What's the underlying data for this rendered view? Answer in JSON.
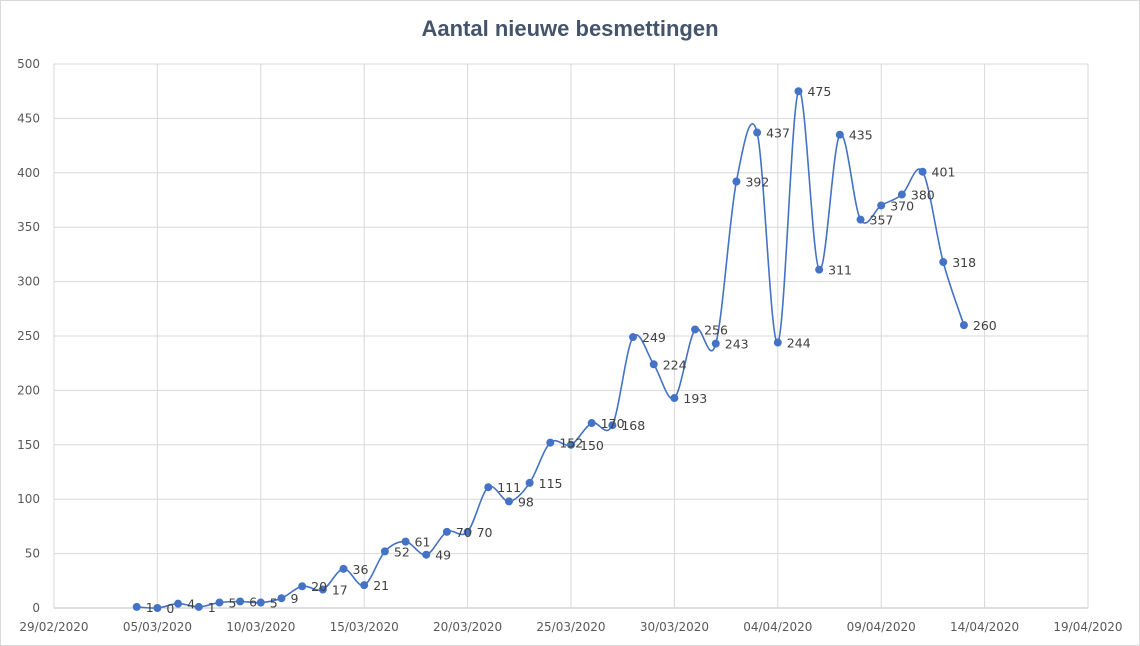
{
  "chart_data": {
    "type": "line",
    "title": "Aantal nieuwe besmettingen",
    "xlabel": "",
    "ylabel": "",
    "ylim": [
      0,
      500
    ],
    "yticks": [
      0,
      50,
      100,
      150,
      200,
      250,
      300,
      350,
      400,
      450,
      500
    ],
    "xlim": [
      "29/02/2020",
      "19/04/2020"
    ],
    "xticks": [
      "29/02/2020",
      "05/03/2020",
      "10/03/2020",
      "15/03/2020",
      "20/03/2020",
      "25/03/2020",
      "30/03/2020",
      "04/04/2020",
      "09/04/2020",
      "14/04/2020",
      "19/04/2020"
    ],
    "grid": true,
    "legend": "none",
    "smooth": true,
    "color": "#4472c4",
    "series": [
      {
        "name": "",
        "x": [
          "04/03/2020",
          "05/03/2020",
          "06/03/2020",
          "07/03/2020",
          "08/03/2020",
          "09/03/2020",
          "10/03/2020",
          "11/03/2020",
          "12/03/2020",
          "13/03/2020",
          "14/03/2020",
          "15/03/2020",
          "16/03/2020",
          "17/03/2020",
          "18/03/2020",
          "19/03/2020",
          "20/03/2020",
          "21/03/2020",
          "22/03/2020",
          "23/03/2020",
          "24/03/2020",
          "25/03/2020",
          "26/03/2020",
          "27/03/2020",
          "28/03/2020",
          "29/03/2020",
          "30/03/2020",
          "31/03/2020",
          "01/04/2020",
          "02/04/2020",
          "03/04/2020",
          "04/04/2020",
          "05/04/2020",
          "06/04/2020",
          "07/04/2020",
          "08/04/2020",
          "09/04/2020",
          "10/04/2020",
          "11/04/2020",
          "12/04/2020",
          "13/04/2020"
        ],
        "values": [
          1,
          0,
          4,
          1,
          5,
          6,
          5,
          9,
          20,
          17,
          36,
          21,
          52,
          61,
          49,
          70,
          70,
          111,
          98,
          115,
          152,
          150,
          170,
          168,
          249,
          224,
          193,
          256,
          243,
          392,
          437,
          244,
          475,
          311,
          435,
          357,
          370,
          380,
          401,
          318,
          260
        ]
      }
    ]
  }
}
